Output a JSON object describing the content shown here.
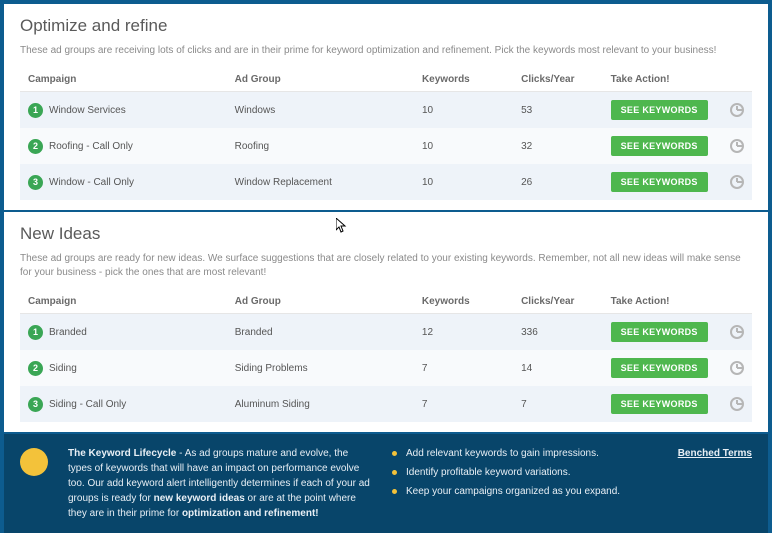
{
  "colors": {
    "page_bg": "#0d5c8f",
    "panel_bg": "#ffffff",
    "row_odd": "#eef3f9",
    "row_even": "#f8fafc",
    "btn_green": "#4eb74e",
    "badge_green": "#3aa655",
    "footer_bg": "#08456a",
    "accent_yellow": "#f3c23a",
    "text_muted": "#8a8a8a",
    "text_body": "#555555"
  },
  "columns": {
    "campaign": "Campaign",
    "adgroup": "Ad Group",
    "keywords": "Keywords",
    "clicks": "Clicks/Year",
    "action": "Take Action!"
  },
  "action_label": "SEE KEYWORDS",
  "panels": {
    "optimize": {
      "title": "Optimize and refine",
      "desc": "These ad groups are receiving lots of clicks and are in their prime for keyword optimization and refinement. Pick the keywords most relevant to your business!",
      "rows": [
        {
          "n": "1",
          "campaign": "Window Services",
          "adgroup": "Windows",
          "keywords": "10",
          "clicks": "53"
        },
        {
          "n": "2",
          "campaign": "Roofing - Call Only",
          "adgroup": "Roofing",
          "keywords": "10",
          "clicks": "32"
        },
        {
          "n": "3",
          "campaign": "Window - Call Only",
          "adgroup": "Window Replacement",
          "keywords": "10",
          "clicks": "26"
        }
      ]
    },
    "ideas": {
      "title": "New Ideas",
      "desc": "These ad groups are ready for new ideas. We surface suggestions that are closely related to your existing keywords. Remember, not all new ideas will make sense for your business - pick the ones that are most relevant!",
      "rows": [
        {
          "n": "1",
          "campaign": "Branded",
          "adgroup": "Branded",
          "keywords": "12",
          "clicks": "336"
        },
        {
          "n": "2",
          "campaign": "Siding",
          "adgroup": "Siding Problems",
          "keywords": "7",
          "clicks": "14"
        },
        {
          "n": "3",
          "campaign": "Siding - Call Only",
          "adgroup": "Aluminum Siding",
          "keywords": "7",
          "clicks": "7"
        }
      ]
    }
  },
  "footer": {
    "lead_bold": "The Keyword Lifecycle",
    "lead_rest_a": " - As ad groups mature and evolve, the types of keywords that will have an impact on performance evolve too. Our add keyword alert intelligently determines if each of your ad groups is ready for ",
    "bold_b": "new keyword ideas",
    "rest_b": " or are at the point where they are in their prime for ",
    "bold_c": "optimization and refinement!",
    "bullets": [
      "Add relevant keywords to gain impressions.",
      "Identify profitable keyword variations.",
      "Keep your campaigns organized as you expand."
    ],
    "benched": "Benched Terms"
  }
}
